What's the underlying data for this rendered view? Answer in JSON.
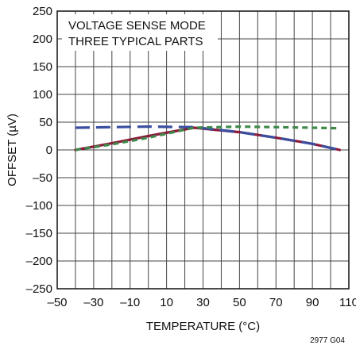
{
  "chart_data": {
    "type": "line",
    "title": "",
    "xlabel": "TEMPERATURE (°C)",
    "ylabel": "OFFSET (µV)",
    "xlim": [
      -50,
      110
    ],
    "ylim": [
      -250,
      250
    ],
    "x_ticks": [
      -50,
      -30,
      -10,
      10,
      30,
      50,
      70,
      90,
      110
    ],
    "x_tick_labels": [
      "–50",
      "–30",
      "–10",
      "10",
      "30",
      "50",
      "70",
      "90",
      "110"
    ],
    "y_ticks": [
      250,
      200,
      150,
      100,
      50,
      0,
      -50,
      -100,
      -150,
      -200,
      -250
    ],
    "y_tick_labels": [
      "250",
      "200",
      "150",
      "100",
      "50",
      "0",
      "–50",
      "–100",
      "–150",
      "–200",
      "–250"
    ],
    "grid": true,
    "annotation_lines": [
      "VOLTAGE SENSE MODE",
      "THREE TYPICAL PARTS"
    ],
    "figure_id": "2977 G04",
    "x": [
      -40,
      -20,
      0,
      25,
      50,
      70,
      90,
      105
    ],
    "series": [
      {
        "values": [
          0,
          12,
          25,
          40,
          32,
          22,
          11,
          0
        ],
        "color": "#8b1a3a",
        "style": "solid"
      },
      {
        "values": [
          40,
          41,
          42,
          41,
          32,
          22,
          11,
          0
        ],
        "color": "#3a4fa0",
        "style": "longdash"
      },
      {
        "values": [
          0,
          10,
          22,
          40,
          42,
          41,
          40,
          39
        ],
        "color": "#3f8a4a",
        "style": "dash"
      }
    ]
  }
}
